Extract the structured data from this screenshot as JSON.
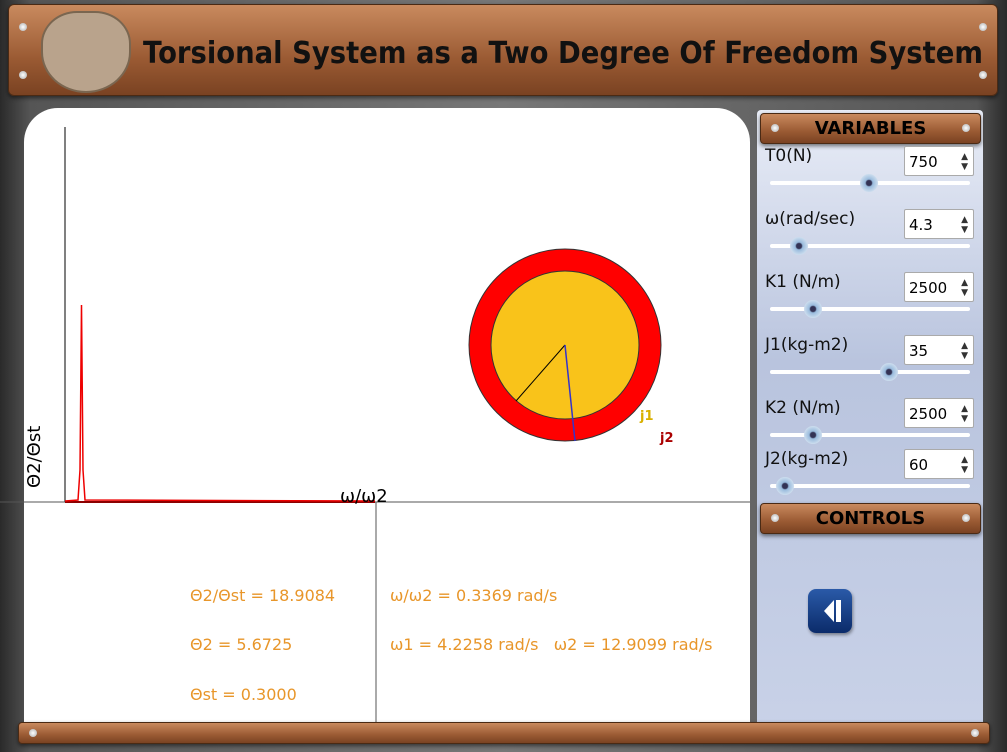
{
  "header": {
    "title": "Torsional System as a Two Degree Of Freedom System"
  },
  "plot": {
    "y_label": "Θ2/Θst",
    "x_label": "ω/ω2",
    "disk_labels": [
      "j1",
      "j2"
    ]
  },
  "results": {
    "left": [
      "Θ2/Θst = 18.9084",
      "Θ2 = 5.6725",
      "Θst = 0.3000"
    ],
    "right": [
      "ω/ω2 = 0.3369 rad/s",
      "ω1 = 4.2258 rad/s   ω2 = 12.9099 rad/s"
    ]
  },
  "variables": {
    "title": "VARIABLES",
    "items": [
      {
        "label": "T0(N)",
        "value": 750
      },
      {
        "label": "ω(rad/sec)",
        "value": 4.3
      },
      {
        "label": "K1 (N/m)",
        "value": 2500
      },
      {
        "label": "J1(kg-m2)",
        "value": 35
      },
      {
        "label": "K2 (N/m)",
        "value": 2500
      },
      {
        "label": "J2(kg-m2)",
        "value": 60
      }
    ]
  },
  "controls": {
    "title": "CONTROLS"
  }
}
